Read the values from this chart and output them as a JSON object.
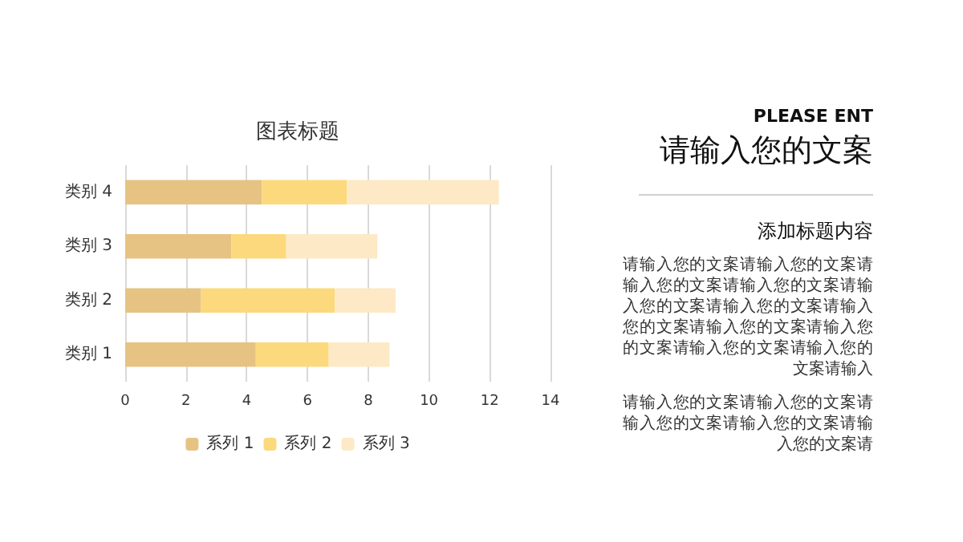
{
  "chart_data": {
    "type": "bar",
    "orientation": "horizontal",
    "stacked": true,
    "title": "图表标题",
    "categories": [
      "类别 4",
      "类别 3",
      "类别 2",
      "类别 1"
    ],
    "series": [
      {
        "name": "系列 1",
        "color": "#e6c382",
        "values": [
          4.5,
          3.5,
          2.5,
          4.3
        ]
      },
      {
        "name": "系列 2",
        "color": "#fcd97c",
        "values": [
          2.8,
          1.8,
          4.4,
          2.4
        ]
      },
      {
        "name": "系列 3",
        "color": "#fde9c6",
        "values": [
          5,
          3,
          2,
          2
        ]
      }
    ],
    "xlim": [
      0,
      14
    ],
    "xticks": [
      0,
      2,
      4,
      6,
      8,
      10,
      12,
      14
    ],
    "grid": "x",
    "legend": "bottom",
    "annotations": [
      "PLEASE ENT",
      "请输入您的文案",
      "添加标题内容",
      "请输入您的文案请输入您的文案请输入您的文案请输入您的文案请输入您的文案请输入您的文案请输入您的文案请输入您的文案请输入您的文案请输入您的文案请输入您的文案请输入",
      "请输入您的文案请输入您的文案请输入您的文案请输入您的文案请输入您的文案请"
    ]
  }
}
